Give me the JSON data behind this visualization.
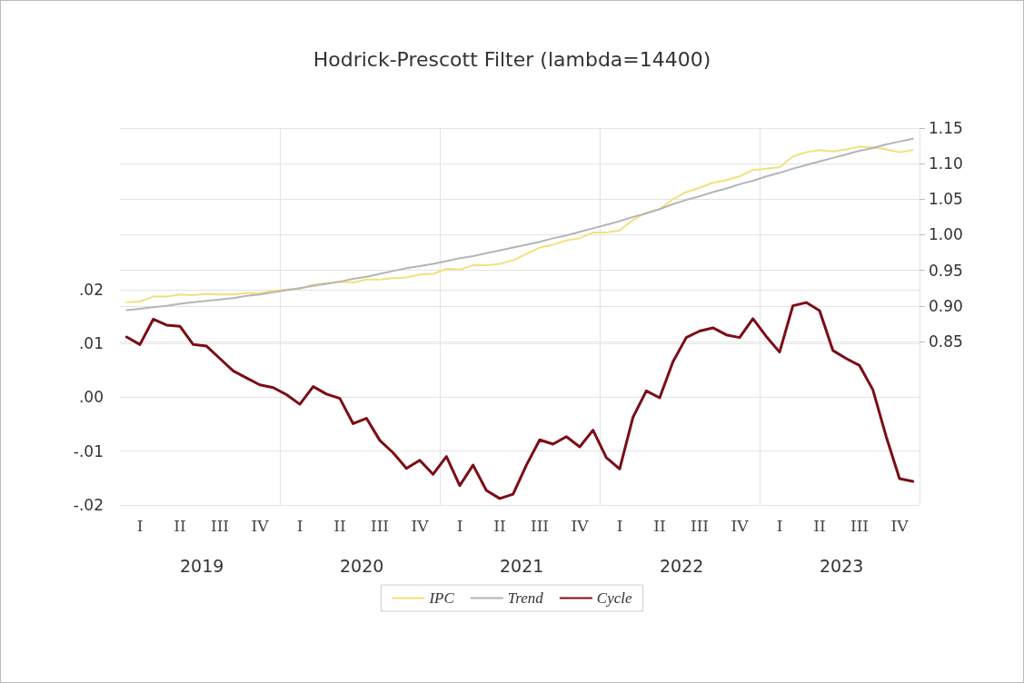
{
  "chart_data": {
    "type": "line",
    "title": "Hodrick-Prescott Filter (lambda=14400)",
    "categories": [
      null,
      "I",
      null,
      null,
      "II",
      null,
      null,
      "III",
      null,
      null,
      "IV",
      null,
      null,
      "I",
      null,
      null,
      "II",
      null,
      null,
      "III",
      null,
      null,
      "IV",
      null,
      null,
      "I",
      null,
      null,
      "II",
      null,
      null,
      "III",
      null,
      null,
      "IV",
      null,
      null,
      "I",
      null,
      null,
      "II",
      null,
      null,
      "III",
      null,
      null,
      "IV",
      null,
      null,
      "I",
      null,
      null,
      "II",
      null,
      null,
      "III",
      null,
      null,
      "IV",
      null
    ],
    "annotations": [
      "2019",
      "2020",
      "2021",
      "2022",
      "2023"
    ],
    "series": [
      {
        "name": "IPC",
        "color": "#f3e07c",
        "axis": "y2",
        "values": [
          0.905,
          0.906,
          0.913,
          0.913,
          0.916,
          0.915,
          0.917,
          0.916,
          0.916,
          0.918,
          0.918,
          0.921,
          0.923,
          0.924,
          0.93,
          0.932,
          0.934,
          0.933,
          0.937,
          0.937,
          0.939,
          0.94,
          0.944,
          0.945,
          0.952,
          0.951,
          0.957,
          0.957,
          0.959,
          0.964,
          0.973,
          0.982,
          0.986,
          0.992,
          0.995,
          1.003,
          1.003,
          1.006,
          1.021,
          1.031,
          1.036,
          1.05,
          1.06,
          1.066,
          1.073,
          1.077,
          1.082,
          1.091,
          1.093,
          1.095,
          1.11,
          1.116,
          1.119,
          1.117,
          1.12,
          1.124,
          1.123,
          1.12,
          1.116,
          1.119
        ]
      },
      {
        "name": "Trend",
        "color": "#b5b5b5",
        "axis": "y2",
        "values": [
          0.894,
          0.896,
          0.898,
          0.9,
          0.903,
          0.905,
          0.907,
          0.909,
          0.911,
          0.914,
          0.916,
          0.919,
          0.922,
          0.925,
          0.928,
          0.931,
          0.934,
          0.938,
          0.941,
          0.945,
          0.949,
          0.953,
          0.956,
          0.959,
          0.963,
          0.967,
          0.97,
          0.974,
          0.978,
          0.982,
          0.986,
          0.99,
          0.995,
          0.999,
          1.004,
          1.009,
          1.014,
          1.019,
          1.025,
          1.03,
          1.036,
          1.043,
          1.049,
          1.054,
          1.06,
          1.065,
          1.071,
          1.076,
          1.082,
          1.087,
          1.093,
          1.098,
          1.103,
          1.108,
          1.113,
          1.118,
          1.122,
          1.127,
          1.131,
          1.135
        ]
      },
      {
        "name": "Cycle",
        "color": "#7b0d16",
        "axis": "y",
        "values": [
          0.0112,
          0.0098,
          0.0145,
          0.0134,
          0.0132,
          0.0098,
          0.0095,
          0.0072,
          0.0049,
          0.0036,
          0.0023,
          0.0018,
          0.0005,
          -0.0013,
          0.002,
          0.0006,
          -0.0002,
          -0.0049,
          -0.0039,
          -0.008,
          -0.0103,
          -0.0132,
          -0.0117,
          -0.0143,
          -0.011,
          -0.0164,
          -0.0126,
          -0.0173,
          -0.0188,
          -0.018,
          -0.0126,
          -0.0079,
          -0.0087,
          -0.0073,
          -0.0092,
          -0.0061,
          -0.0112,
          -0.0133,
          -0.0037,
          0.0012,
          -0.0001,
          0.0066,
          0.0111,
          0.0123,
          0.0129,
          0.0116,
          0.0111,
          0.0146,
          0.0113,
          0.0084,
          0.017,
          0.0176,
          0.0161,
          0.0087,
          0.0072,
          0.0059,
          0.0014,
          -0.0073,
          -0.0151,
          -0.0156
        ]
      }
    ],
    "ylim": [
      -0.02,
      0.05
    ],
    "yticks": [
      {
        "value": -0.02,
        "label": "-.02"
      },
      {
        "value": -0.01,
        "label": "-.01"
      },
      {
        "value": 0,
        "label": ".00"
      },
      {
        "value": 0.01,
        "label": ".01"
      },
      {
        "value": 0.02,
        "label": ".02"
      }
    ],
    "y2lim": [
      0.62,
      1.15
    ],
    "y2ticks": [
      {
        "value": 0.85,
        "label": "0.85"
      },
      {
        "value": 0.9,
        "label": "0.90"
      },
      {
        "value": 0.95,
        "label": "0.95"
      },
      {
        "value": 1.0,
        "label": "1.00"
      },
      {
        "value": 1.05,
        "label": "1.05"
      },
      {
        "value": 1.1,
        "label": "1.10"
      },
      {
        "value": 1.15,
        "label": "1.15"
      }
    ],
    "grid": true,
    "legend": "bottom",
    "marker": "none",
    "line_style": "solid"
  }
}
